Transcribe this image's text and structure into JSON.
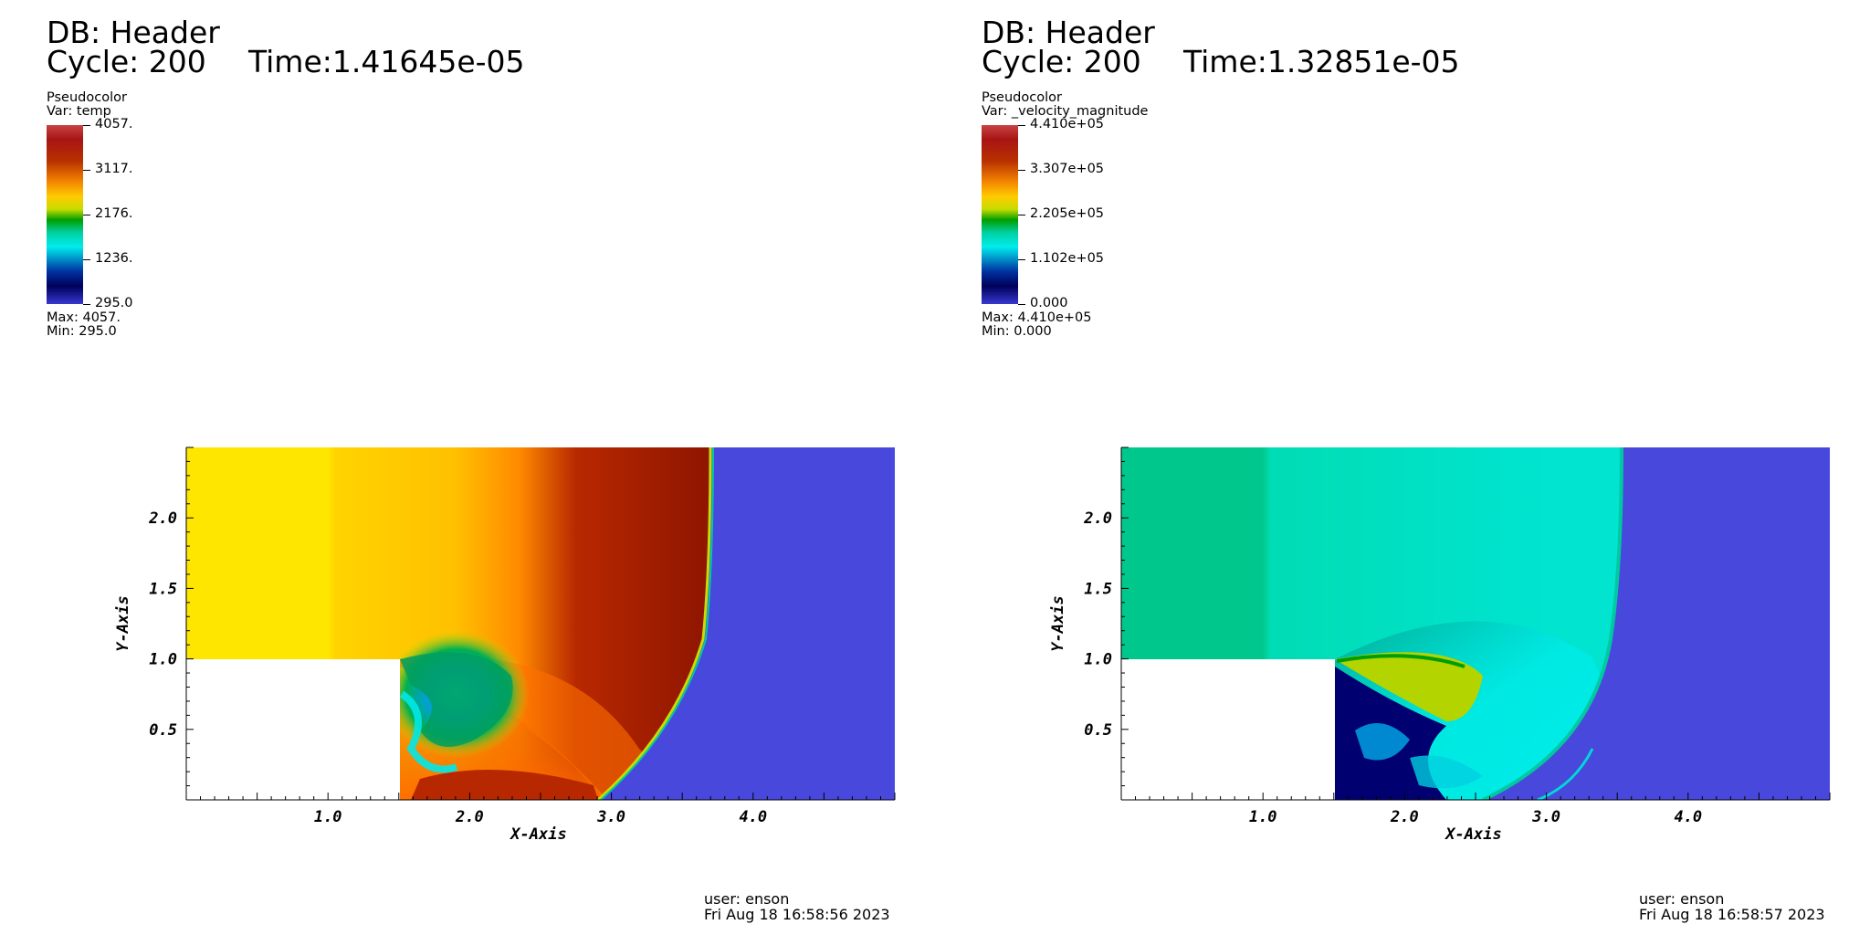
{
  "panels": [
    {
      "db_label": "DB: Header",
      "cycle_label": "Cycle: 200",
      "time_label": "Time:1.41645e-05",
      "legend": {
        "plot_type": "Pseudocolor",
        "var_label": "Var: temp",
        "ticks": [
          "4057.",
          "3117.",
          "2176.",
          "1236.",
          "295.0"
        ],
        "max_label": "Max:  4057.",
        "min_label": "Min:  295.0"
      },
      "user_label": "user: enson",
      "date_label": "Fri Aug 18 16:58:56 2023"
    },
    {
      "db_label": "DB: Header",
      "cycle_label": "Cycle: 200",
      "time_label": "Time:1.32851e-05",
      "legend": {
        "plot_type": "Pseudocolor",
        "var_label": "Var: _velocity_magnitude",
        "ticks": [
          "4.410e+05",
          "3.307e+05",
          "2.205e+05",
          "1.102e+05",
          "0.000"
        ],
        "max_label": "Max:  4.410e+05",
        "min_label": "Min:  0.000"
      },
      "user_label": "user: enson",
      "date_label": "Fri Aug 18 16:58:57 2023"
    }
  ],
  "chart_data": [
    {
      "type": "heatmap",
      "variable": "temp",
      "xlabel": "X-Axis",
      "ylabel": "Y-Axis",
      "xlim": [
        0.0,
        5.0
      ],
      "ylim": [
        0.0,
        2.5
      ],
      "x_ticks": [
        "1.0",
        "2.0",
        "3.0",
        "4.0"
      ],
      "y_ticks": [
        "0.5",
        "1.0",
        "1.5",
        "2.0"
      ],
      "x_tick_values": [
        1.0,
        2.0,
        3.0,
        4.0
      ],
      "y_tick_values": [
        0.5,
        1.0,
        1.5,
        2.0
      ],
      "value_range": [
        295.0,
        4057.0
      ],
      "colormap": [
        "#3838d0",
        "#00005a",
        "#0030a0",
        "#00ecec",
        "#00d0a0",
        "#009e00",
        "#c8dc00",
        "#ffcc00",
        "#f08000",
        "#b83000",
        "#a81414",
        "#c84444"
      ],
      "step_region": {
        "x": [
          0.0,
          1.5
        ],
        "y": [
          0.0,
          1.0
        ]
      },
      "shock_front_x_top": 3.7,
      "shock_front_x_bottom": 2.9
    },
    {
      "type": "heatmap",
      "variable": "_velocity_magnitude",
      "xlabel": "X-Axis",
      "ylabel": "Y-Axis",
      "xlim": [
        0.0,
        5.0
      ],
      "ylim": [
        0.0,
        2.5
      ],
      "x_ticks": [
        "1.0",
        "2.0",
        "3.0",
        "4.0"
      ],
      "y_ticks": [
        "0.5",
        "1.0",
        "1.5",
        "2.0"
      ],
      "x_tick_values": [
        1.0,
        2.0,
        3.0,
        4.0
      ],
      "y_tick_values": [
        0.5,
        1.0,
        1.5,
        2.0
      ],
      "value_range": [
        0.0,
        441000.0
      ],
      "colormap": [
        "#3838d0",
        "#00005a",
        "#0030a0",
        "#00ecec",
        "#00d0a0",
        "#009e00",
        "#c8dc00",
        "#ffcc00",
        "#f08000",
        "#b83000",
        "#a81414",
        "#c84444"
      ],
      "step_region": {
        "x": [
          0.0,
          1.5
        ],
        "y": [
          0.0,
          1.0
        ]
      },
      "shock_front_x_top": 3.5,
      "shock_front_x_bottom": 2.4
    }
  ]
}
